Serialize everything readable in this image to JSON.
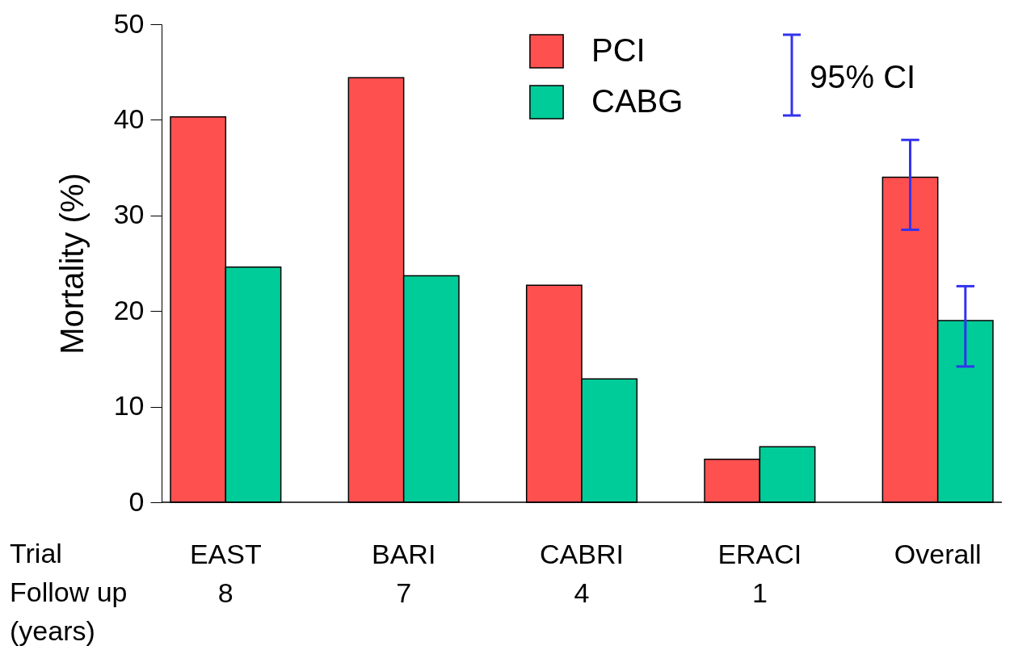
{
  "chart_data": {
    "type": "bar",
    "ylabel": "Mortality (%)",
    "categories": [
      "EAST\n8",
      "BARI\n7",
      "CABRI\n4",
      "ERACI\n1",
      "Overall"
    ],
    "series": [
      {
        "name": "PCI",
        "color": "#ff5050",
        "values": [
          40.3,
          44.4,
          22.7,
          4.5,
          34.0
        ],
        "errors": [
          null,
          null,
          null,
          null,
          [
            28.5,
            37.9
          ]
        ]
      },
      {
        "name": "CABG",
        "color": "#00cc99",
        "values": [
          24.6,
          23.7,
          12.9,
          5.8,
          19.0
        ],
        "errors": [
          null,
          null,
          null,
          null,
          [
            14.2,
            22.6
          ]
        ]
      }
    ],
    "ylim": [
      0,
      50
    ],
    "yticks": [
      0,
      10,
      20,
      30,
      40,
      50
    ],
    "grid": false,
    "legend": "top",
    "annotations": [
      "Trial",
      "Follow up",
      "(years)",
      "95% CI"
    ]
  }
}
